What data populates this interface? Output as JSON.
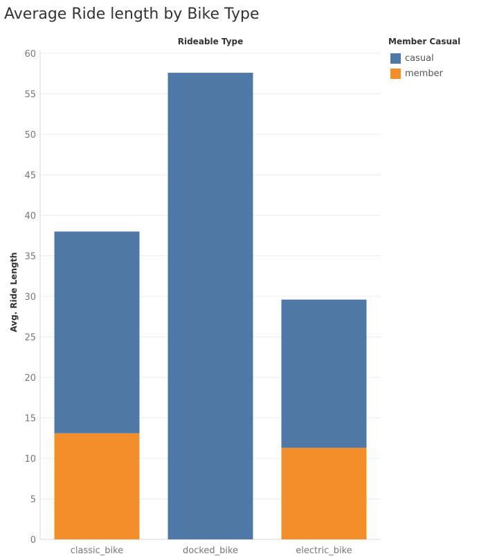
{
  "colors": {
    "casual": "#4e79a7",
    "member": "#f28e2b",
    "grid": "#ececec",
    "tick_text": "#777777",
    "axis": "#d9d9d9"
  },
  "chart_data": {
    "type": "bar",
    "stacked": true,
    "title": "Average Ride length by Bike Type",
    "column_header": "Rideable Type",
    "xlabel": "",
    "ylabel": "Avg. Ride Length",
    "categories": [
      "classic_bike",
      "docked_bike",
      "electric_bike"
    ],
    "series": [
      {
        "name": "member",
        "values": [
          13.1,
          0,
          11.3
        ]
      },
      {
        "name": "casual",
        "values": [
          24.9,
          57.6,
          18.3
        ]
      }
    ],
    "ylim": [
      0,
      60
    ],
    "yticks": [
      0,
      5,
      10,
      15,
      20,
      25,
      30,
      35,
      40,
      45,
      50,
      55,
      60
    ],
    "grid": true,
    "legend": {
      "title": "Member Casual",
      "placement": "right",
      "entries": [
        "casual",
        "member"
      ]
    }
  }
}
